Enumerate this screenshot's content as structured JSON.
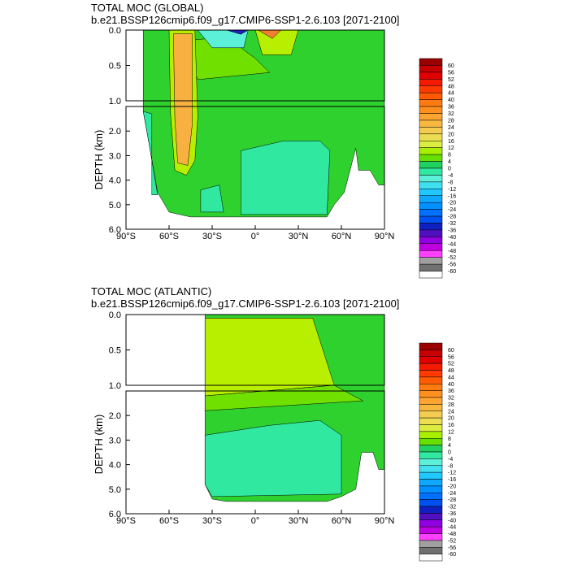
{
  "chart_data": [
    {
      "type": "heatmap",
      "title": "TOTAL MOC (GLOBAL)",
      "subtitle": "b.e21.BSSP126cmip6.f09_g17.CMIP6-SSP1-2.6.103 [2071-2100]",
      "xlabel": "",
      "ylabel": "DEPTH (km)",
      "xlim": [
        -90,
        90
      ],
      "ylim": [
        6.0,
        0.0
      ],
      "x_ticks": [
        "90°S",
        "60°S",
        "30°S",
        "0°",
        "30°N",
        "60°N",
        "90°N"
      ],
      "y_ticks_upper": [
        "0.0",
        "0.5",
        "1.0"
      ],
      "y_ticks_lower": [
        "2.0",
        "3.0",
        "4.0",
        "5.0",
        "6.0"
      ],
      "colorbar_levels": [
        "60",
        "56",
        "52",
        "48",
        "44",
        "40",
        "36",
        "32",
        "28",
        "24",
        "20",
        "16",
        "12",
        "8",
        "4",
        "0",
        "-4",
        "-8",
        "-12",
        "-16",
        "-20",
        "-24",
        "-28",
        "-32",
        "-36",
        "-40",
        "-44",
        "-48",
        "-52",
        "-56",
        "-60"
      ],
      "features": [
        {
          "lat": -50,
          "depth_km": [
            0.0,
            3.5
          ],
          "value": 24
        },
        {
          "lat": -10,
          "depth_km": [
            0.0,
            0.1
          ],
          "value": -40
        },
        {
          "lat": 20,
          "depth_km": [
            0.0,
            0.2
          ],
          "value": 28
        }
      ]
    },
    {
      "type": "heatmap",
      "title": "TOTAL MOC (ATLANTIC)",
      "subtitle": "b.e21.BSSP126cmip6.f09_g17.CMIP6-SSP1-2.6.103 [2071-2100]",
      "xlabel": "",
      "ylabel": "DEPTH (km)",
      "xlim": [
        -90,
        90
      ],
      "ylim": [
        6.0,
        0.0
      ],
      "x_ticks": [
        "90°S",
        "60°S",
        "30°S",
        "0°",
        "30°N",
        "60°N",
        "90°N"
      ],
      "y_ticks_upper": [
        "0.0",
        "0.5",
        "1.0"
      ],
      "y_ticks_lower": [
        "2.0",
        "3.0",
        "4.0",
        "5.0",
        "6.0"
      ],
      "colorbar_levels": [
        "60",
        "56",
        "52",
        "48",
        "44",
        "40",
        "36",
        "32",
        "28",
        "24",
        "20",
        "16",
        "12",
        "8",
        "4",
        "0",
        "-4",
        "-8",
        "-12",
        "-16",
        "-20",
        "-24",
        "-28",
        "-32",
        "-36",
        "-40",
        "-44",
        "-48",
        "-52",
        "-56",
        "-60"
      ],
      "features": [
        {
          "lat": 0,
          "depth_km": [
            0.0,
            1.2
          ],
          "value": 12
        },
        {
          "lat": 10,
          "depth_km": [
            2.5,
            5.5
          ],
          "value": -4
        }
      ]
    }
  ],
  "colors": {
    "ocean_bg": "#2ed12e",
    "pos_4": "#6fe000",
    "pos_8": "#b8ef00",
    "neg_4": "#30e8a0",
    "neg_8": "#5df0d8",
    "warm_core": "#f8b040"
  },
  "colorbar_colors": [
    "#9b0000",
    "#c80000",
    "#e00000",
    "#f41a00",
    "#ff3a00",
    "#ff5a00",
    "#ff7a10",
    "#ff9020",
    "#fda530",
    "#f8b840",
    "#f3cc50",
    "#ecde50",
    "#dcec40",
    "#a8f000",
    "#66e000",
    "#20d060",
    "#30e8a0",
    "#5df0d8",
    "#40e0f0",
    "#20c8ff",
    "#10a8ff",
    "#0090ff",
    "#0070ff",
    "#0050f0",
    "#1020c0",
    "#5010c0",
    "#9000e0",
    "#c000e0",
    "#ff40ff",
    "#a0a0a0",
    "#707070"
  ]
}
